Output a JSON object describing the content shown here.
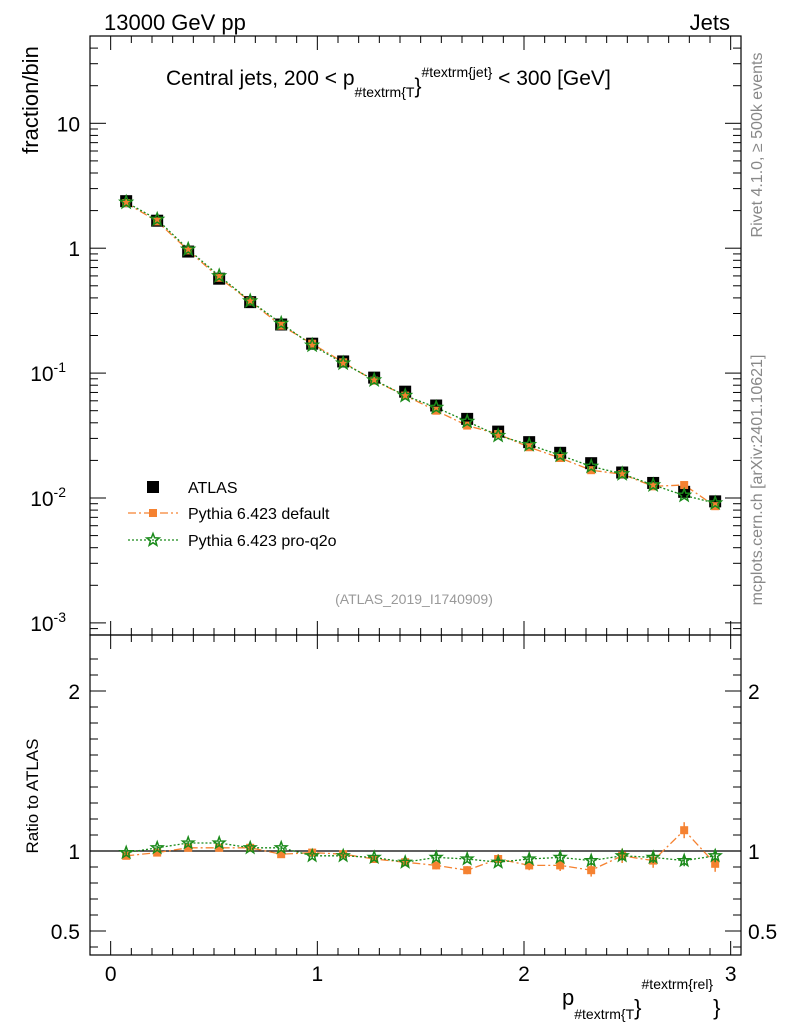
{
  "header": {
    "left": "13000 GeV pp",
    "right": "Jets"
  },
  "side_labels": {
    "top": "Rivet 4.1.0, ≥ 500k events",
    "bottom": "mcplots.cern.ch [arXiv:2401.10621]"
  },
  "watermark": "(ATLAS_2019_I1740909)",
  "colors": {
    "atlas": "#000000",
    "default": "#f58231",
    "proq2o": "#1a8a1a"
  },
  "chart_data": {
    "type": "scatter",
    "title": {
      "main": "Central jets, 200 < p",
      "sub": "#textrm{T",
      "sup": "#textrm{jet}",
      "tail": " < 300 [GeV]"
    },
    "xlabel": {
      "main": "p",
      "sub": "#textrm{T",
      "sup": "#textrm{rel}"
    },
    "ylabel_top": "fraction/bin",
    "ylabel_bottom": "Ratio to ATLAS",
    "xlim": [
      -0.1,
      3.05
    ],
    "ylim_top": [
      0.0008,
      50
    ],
    "ylim_bottom": [
      0.35,
      2.35
    ],
    "x_ticks": [
      "0",
      "1",
      "2",
      "3"
    ],
    "y_ticks_top": [
      {
        "base": "10",
        "exp": "-3"
      },
      {
        "base": "10",
        "exp": "-2"
      },
      {
        "base": "10",
        "exp": "-1"
      },
      {
        "base": "1",
        "exp": ""
      },
      {
        "base": "10",
        "exp": ""
      }
    ],
    "y_ticks_bottom": [
      "0.5",
      "1",
      "2"
    ],
    "x": [
      0.075,
      0.225,
      0.375,
      0.525,
      0.675,
      0.825,
      0.975,
      1.125,
      1.275,
      1.425,
      1.575,
      1.725,
      1.875,
      2.025,
      2.175,
      2.325,
      2.475,
      2.625,
      2.775,
      2.925
    ],
    "series": [
      {
        "name": "ATLAS",
        "marker": "square",
        "values": [
          2.38,
          1.66,
          0.94,
          0.57,
          0.37,
          0.245,
          0.172,
          0.124,
          0.092,
          0.071,
          0.055,
          0.043,
          0.034,
          0.028,
          0.023,
          0.019,
          0.016,
          0.0132,
          0.0112,
          0.0094
        ]
      },
      {
        "name": "Pythia 6.423 default",
        "marker": "square-small",
        "dash": "dashdot",
        "values": [
          2.3,
          1.64,
          0.96,
          0.58,
          0.375,
          0.24,
          0.172,
          0.122,
          0.087,
          0.066,
          0.05,
          0.038,
          0.0325,
          0.0255,
          0.0209,
          0.0167,
          0.0155,
          0.0124,
          0.0127,
          0.0086
        ]
      },
      {
        "name": "Pythia 6.423 pro-q2o",
        "marker": "star",
        "dash": "dotted",
        "values": [
          2.33,
          1.7,
          0.98,
          0.6,
          0.378,
          0.25,
          0.167,
          0.12,
          0.088,
          0.066,
          0.053,
          0.041,
          0.0316,
          0.0267,
          0.022,
          0.0179,
          0.0156,
          0.0127,
          0.0105,
          0.0091
        ]
      }
    ],
    "ratio_series": [
      {
        "name": "Pythia 6.423 default",
        "values": [
          0.97,
          0.99,
          1.02,
          1.02,
          1.02,
          0.98,
          0.99,
          0.98,
          0.95,
          0.93,
          0.91,
          0.88,
          0.95,
          0.91,
          0.91,
          0.88,
          0.97,
          0.94,
          1.13,
          0.92
        ],
        "errors": [
          0.015,
          0.015,
          0.015,
          0.015,
          0.015,
          0.015,
          0.015,
          0.015,
          0.02,
          0.02,
          0.025,
          0.025,
          0.03,
          0.03,
          0.035,
          0.04,
          0.045,
          0.045,
          0.05,
          0.05
        ]
      },
      {
        "name": "Pythia 6.423 pro-q2o",
        "values": [
          0.99,
          1.02,
          1.05,
          1.05,
          1.02,
          1.02,
          0.97,
          0.97,
          0.96,
          0.93,
          0.96,
          0.95,
          0.93,
          0.95,
          0.96,
          0.94,
          0.97,
          0.96,
          0.94,
          0.97
        ],
        "errors": [
          0.012,
          0.012,
          0.012,
          0.012,
          0.012,
          0.012,
          0.012,
          0.012,
          0.015,
          0.015,
          0.02,
          0.02,
          0.02,
          0.025,
          0.025,
          0.03,
          0.03,
          0.035,
          0.035,
          0.04
        ]
      }
    ],
    "legend_position": "lower-left"
  }
}
